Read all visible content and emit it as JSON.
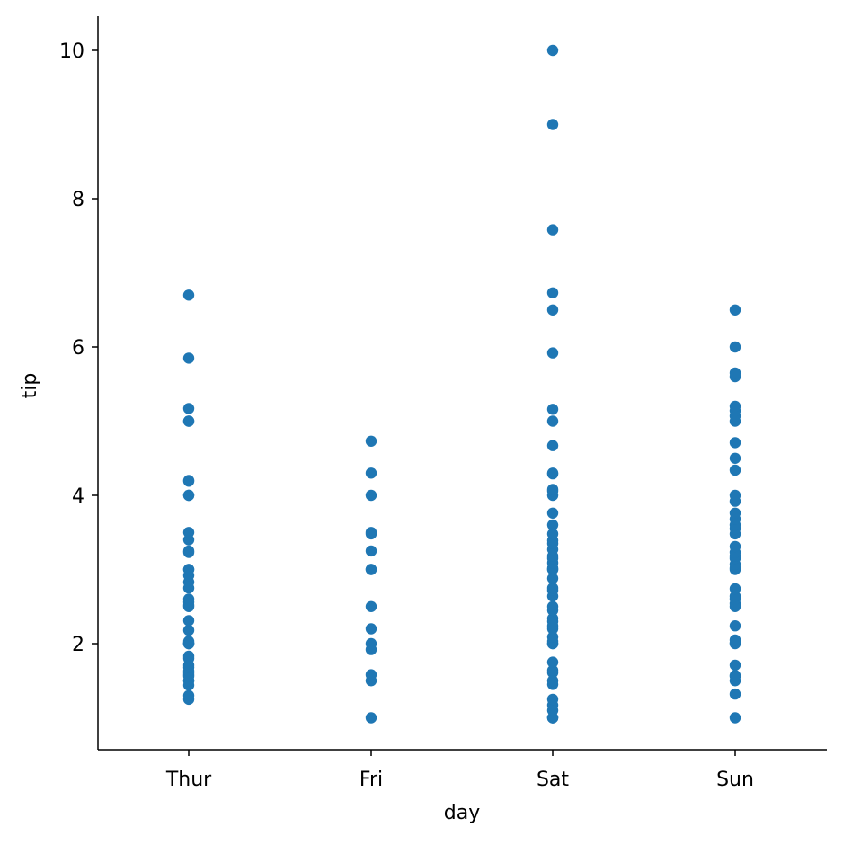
{
  "chart_data": {
    "type": "scatter",
    "title": "",
    "xlabel": "day",
    "ylabel": "tip",
    "categories": [
      "Thur",
      "Fri",
      "Sat",
      "Sun"
    ],
    "yticks": [
      "2",
      "4",
      "6",
      "8",
      "10"
    ],
    "ylim": [
      0.55,
      10.45
    ],
    "grid": false,
    "legend": "none",
    "marker_color": "#1f77b4",
    "series": [
      {
        "values": [
          [
            1.25,
            1.3,
            1.44,
            1.5,
            1.5,
            1.56,
            1.58,
            1.61,
            1.63,
            1.68,
            1.71,
            1.8,
            1.83,
            2.0,
            2.0,
            2.0,
            2.01,
            2.03,
            2.18,
            2.31,
            2.5,
            2.52,
            2.56,
            2.6,
            2.75,
            2.83,
            2.92,
            3.0,
            3.0,
            3.23,
            3.25,
            3.4,
            3.5,
            4.0,
            4.0,
            4.19,
            4.2,
            5.0,
            5.0,
            5.17,
            5.85,
            6.7
          ],
          [
            1.0,
            1.5,
            1.58,
            1.92,
            2.0,
            2.2,
            2.5,
            3.0,
            3.0,
            3.25,
            3.48,
            3.5,
            4.0,
            4.3,
            4.73
          ],
          [
            1.0,
            1.0,
            1.0,
            1.1,
            1.17,
            1.25,
            1.45,
            1.5,
            1.61,
            1.64,
            1.75,
            2.0,
            2.0,
            2.03,
            2.09,
            2.2,
            2.24,
            2.3,
            2.34,
            2.45,
            2.5,
            2.64,
            2.72,
            2.75,
            2.88,
            3.0,
            3.0,
            3.02,
            3.09,
            3.15,
            3.18,
            3.27,
            3.35,
            3.39,
            3.48,
            3.6,
            3.76,
            4.0,
            4.06,
            4.08,
            4.29,
            4.3,
            4.67,
            5.0,
            5.16,
            5.92,
            6.5,
            6.73,
            7.58,
            9.0,
            10.0
          ],
          [
            1.0,
            1.32,
            1.5,
            1.56,
            1.57,
            1.71,
            2.0,
            2.01,
            2.05,
            2.24,
            2.5,
            2.54,
            2.6,
            2.64,
            2.74,
            3.0,
            3.02,
            3.07,
            3.15,
            3.18,
            3.23,
            3.31,
            3.48,
            3.55,
            3.6,
            3.68,
            3.76,
            3.92,
            4.0,
            4.34,
            4.5,
            4.71,
            5.0,
            5.07,
            5.14,
            5.2,
            5.6,
            5.65,
            6.0,
            6.5
          ]
        ]
      }
    ]
  }
}
